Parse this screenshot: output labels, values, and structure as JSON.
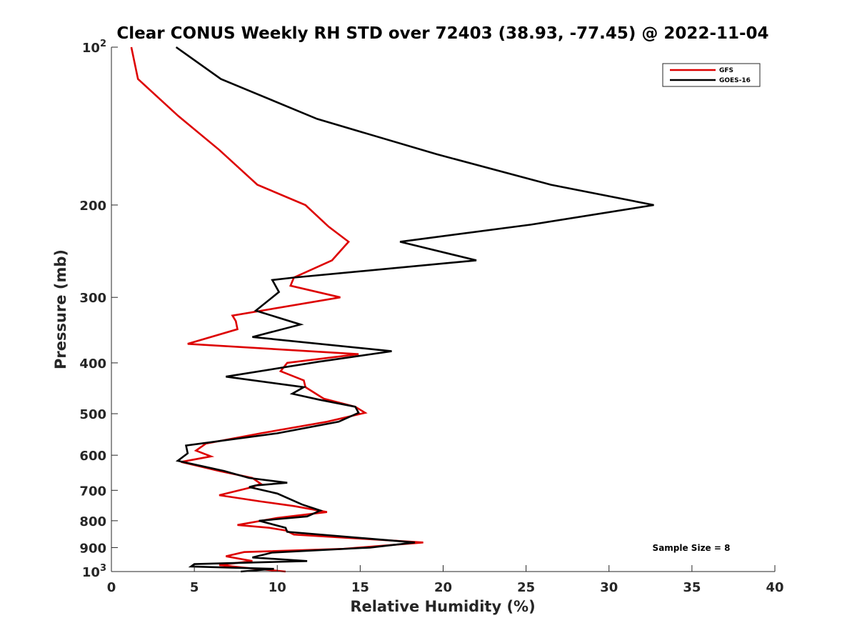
{
  "chart_data": {
    "type": "line",
    "title": "Clear CONUS Weekly RH STD over 72403 (38.93, -77.45) @ 2022-11-04",
    "xlabel": "Relative Humidity (%)",
    "ylabel": "Pressure (mb)",
    "xlim": [
      0,
      40
    ],
    "ylim": [
      100,
      1000
    ],
    "y_scale": "log",
    "y_reversed": true,
    "x_ticks": [
      "0",
      "5",
      "10",
      "15",
      "20",
      "25",
      "30",
      "35",
      "40"
    ],
    "y_ticks": [
      {
        "value": 100,
        "base": "10",
        "exp": "2"
      },
      {
        "value": 200,
        "label": "200"
      },
      {
        "value": 300,
        "label": "300"
      },
      {
        "value": 400,
        "label": "400"
      },
      {
        "value": 500,
        "label": "500"
      },
      {
        "value": 600,
        "label": "600"
      },
      {
        "value": 700,
        "label": "700"
      },
      {
        "value": 800,
        "label": "800"
      },
      {
        "value": 900,
        "label": "900"
      },
      {
        "value": 1000,
        "base": "10",
        "exp": "3"
      }
    ],
    "legend_position": "top-right",
    "annotation": "Sample Size = 8",
    "series": [
      {
        "name": "GFS",
        "color": "#dd0000",
        "points": [
          [
            1.2,
            100
          ],
          [
            1.6,
            115
          ],
          [
            4.0,
            135
          ],
          [
            6.5,
            157
          ],
          [
            8.8,
            183
          ],
          [
            11.7,
            200
          ],
          [
            13.1,
            220
          ],
          [
            14.3,
            235
          ],
          [
            13.3,
            255
          ],
          [
            11.0,
            275
          ],
          [
            10.8,
            285
          ],
          [
            13.8,
            300
          ],
          [
            7.3,
            325
          ],
          [
            7.5,
            333
          ],
          [
            7.6,
            345
          ],
          [
            4.6,
            368
          ],
          [
            14.9,
            385
          ],
          [
            10.6,
            400
          ],
          [
            10.2,
            415
          ],
          [
            11.6,
            432
          ],
          [
            11.7,
            445
          ],
          [
            12.8,
            468
          ],
          [
            14.7,
            485
          ],
          [
            15.3,
            498
          ],
          [
            13.0,
            518
          ],
          [
            9.0,
            545
          ],
          [
            5.7,
            570
          ],
          [
            5.1,
            588
          ],
          [
            6.0,
            603
          ],
          [
            4.2,
            618
          ],
          [
            6.5,
            643
          ],
          [
            8.5,
            663
          ],
          [
            9.0,
            680
          ],
          [
            8.5,
            690
          ],
          [
            6.5,
            715
          ],
          [
            9.0,
            735
          ],
          [
            11.0,
            750
          ],
          [
            13.0,
            770
          ],
          [
            10.0,
            790
          ],
          [
            7.6,
            815
          ],
          [
            9.5,
            825
          ],
          [
            10.5,
            835
          ],
          [
            11.0,
            850
          ],
          [
            18.8,
            880
          ],
          [
            14.0,
            905
          ],
          [
            8.0,
            918
          ],
          [
            6.9,
            935
          ],
          [
            8.5,
            955
          ],
          [
            6.5,
            972
          ],
          [
            8.0,
            983
          ],
          [
            10.5,
            1000
          ]
        ]
      },
      {
        "name": "GOES-16",
        "color": "#000000",
        "points": [
          [
            3.9,
            100
          ],
          [
            6.6,
            115
          ],
          [
            12.4,
            137
          ],
          [
            19.6,
            160
          ],
          [
            26.5,
            183
          ],
          [
            32.7,
            200
          ],
          [
            25.3,
            218
          ],
          [
            17.4,
            235
          ],
          [
            22.0,
            255
          ],
          [
            11.0,
            275
          ],
          [
            9.7,
            278
          ],
          [
            10.1,
            293
          ],
          [
            8.7,
            318
          ],
          [
            11.4,
            338
          ],
          [
            8.5,
            357
          ],
          [
            16.9,
            380
          ],
          [
            12.5,
            398
          ],
          [
            6.9,
            425
          ],
          [
            11.6,
            445
          ],
          [
            10.9,
            458
          ],
          [
            12.5,
            470
          ],
          [
            14.7,
            485
          ],
          [
            14.9,
            498
          ],
          [
            13.7,
            518
          ],
          [
            10.0,
            545
          ],
          [
            4.5,
            575
          ],
          [
            4.6,
            595
          ],
          [
            4.0,
            615
          ],
          [
            6.8,
            643
          ],
          [
            8.3,
            663
          ],
          [
            10.6,
            677
          ],
          [
            8.7,
            685
          ],
          [
            8.3,
            690
          ],
          [
            10.0,
            710
          ],
          [
            11.5,
            745
          ],
          [
            12.6,
            765
          ],
          [
            11.8,
            785
          ],
          [
            8.9,
            800
          ],
          [
            10.5,
            825
          ],
          [
            10.6,
            840
          ],
          [
            18.3,
            880
          ],
          [
            15.6,
            900
          ],
          [
            9.7,
            920
          ],
          [
            8.5,
            940
          ],
          [
            11.8,
            955
          ],
          [
            5.0,
            968
          ],
          [
            4.8,
            978
          ],
          [
            9.8,
            988
          ],
          [
            7.8,
            1000
          ]
        ]
      }
    ]
  }
}
